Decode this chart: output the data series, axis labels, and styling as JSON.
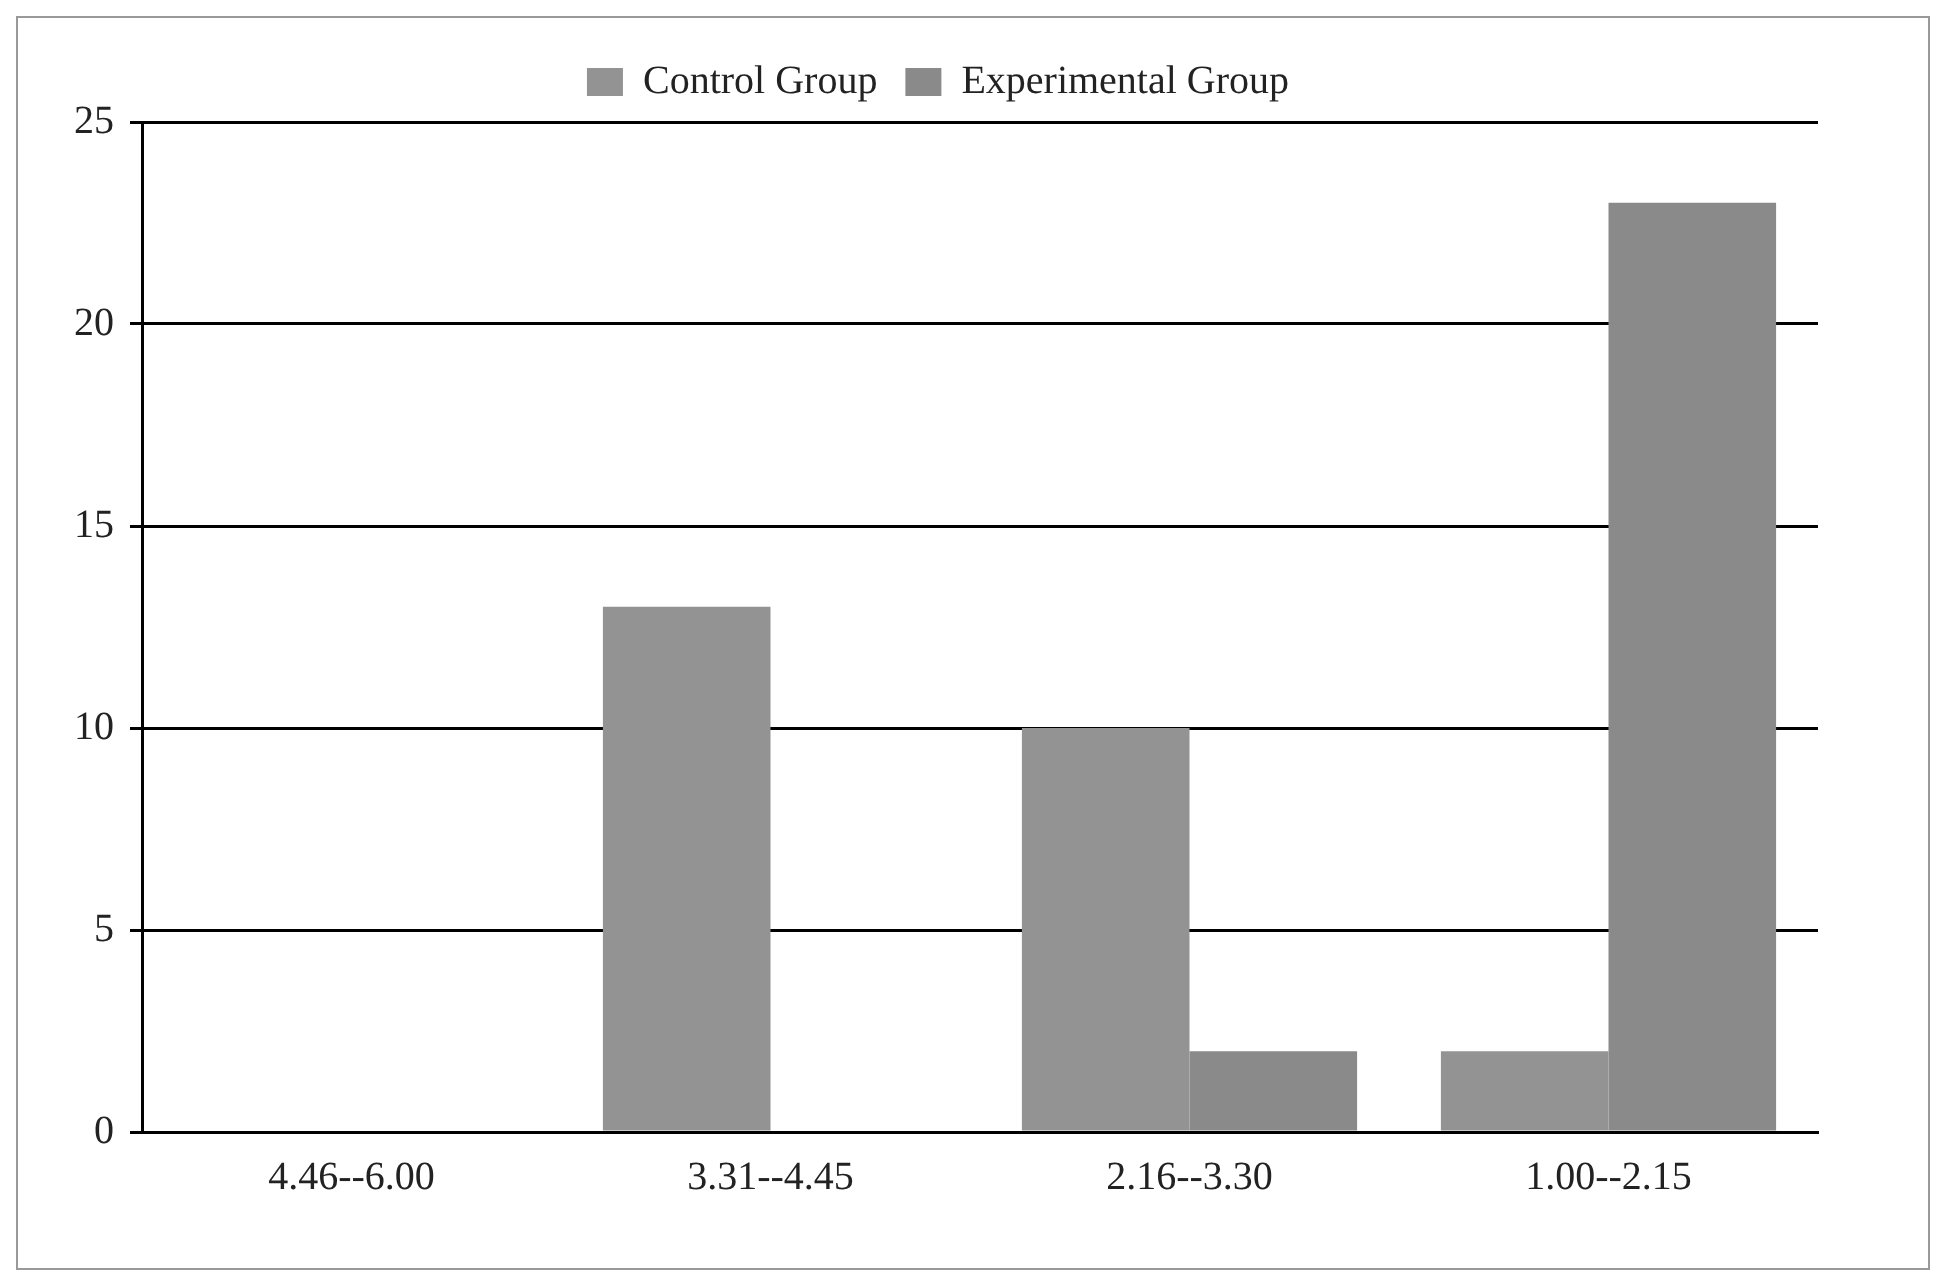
{
  "chart_data": {
    "type": "bar",
    "categories": [
      "4.46--6.00",
      "3.31--4.45",
      "2.16--3.30",
      "1.00--2.15"
    ],
    "series": [
      {
        "name": "Control Group",
        "color": "#939393",
        "values": [
          0,
          13,
          10,
          2
        ]
      },
      {
        "name": "Experimental Group",
        "color": "#8a8a8a",
        "values": [
          0,
          0,
          2,
          23
        ]
      }
    ],
    "ylim": [
      0,
      25
    ],
    "yticks": [
      0,
      5,
      10,
      15,
      20,
      25
    ],
    "grid": "y",
    "legend": "top"
  }
}
